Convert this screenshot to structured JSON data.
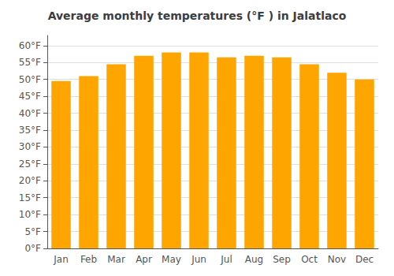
{
  "chart_data": {
    "type": "bar",
    "title": "Average monthly temperatures (°F ) in Jalatlaco",
    "categories": [
      "Jan",
      "Feb",
      "Mar",
      "Apr",
      "May",
      "Jun",
      "Jul",
      "Aug",
      "Sep",
      "Oct",
      "Nov",
      "Dec"
    ],
    "values": [
      49.5,
      51.0,
      54.5,
      57.0,
      58.0,
      58.0,
      56.5,
      57.0,
      56.5,
      54.5,
      52.0,
      50.0
    ],
    "color": "#FFA500",
    "ylim": [
      0,
      63
    ],
    "yticks": [
      {
        "value": 0,
        "label": "0°F"
      },
      {
        "value": 5,
        "label": "5°F"
      },
      {
        "value": 10,
        "label": "10°F"
      },
      {
        "value": 15,
        "label": "15°F"
      },
      {
        "value": 20,
        "label": "20°F"
      },
      {
        "value": 25,
        "label": "25°F"
      },
      {
        "value": 30,
        "label": "30°F"
      },
      {
        "value": 35,
        "label": "35°F"
      },
      {
        "value": 40,
        "label": "40°F"
      },
      {
        "value": 45,
        "label": "45°F"
      },
      {
        "value": 50,
        "label": "50°F"
      },
      {
        "value": 55,
        "label": "55°F"
      },
      {
        "value": 60,
        "label": "60°F"
      }
    ],
    "grid": true
  }
}
